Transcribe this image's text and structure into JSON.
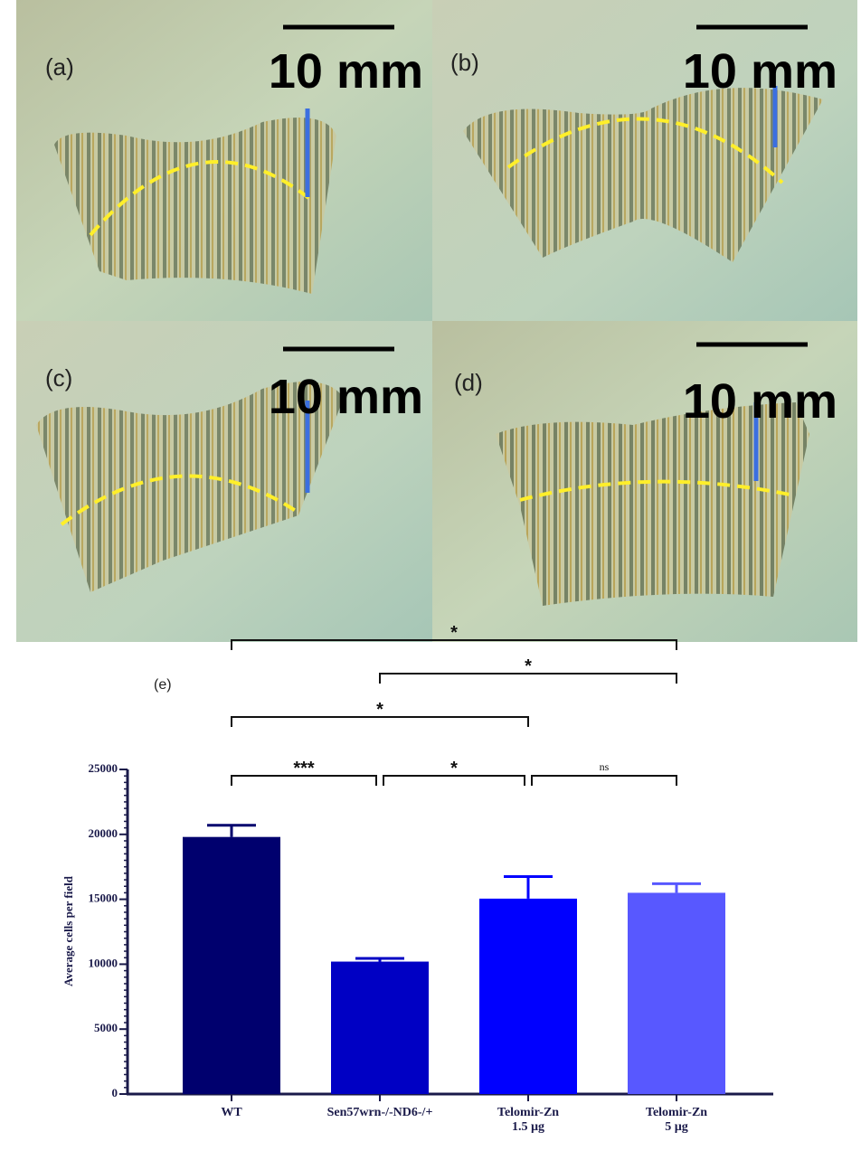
{
  "panels": [
    {
      "label": "(a)",
      "scale": "10 mm"
    },
    {
      "label": "(b)",
      "scale": "10 mm"
    },
    {
      "label": "(c)",
      "scale": "10 mm"
    },
    {
      "label": "(d)",
      "scale": "10 mm"
    }
  ],
  "chart_data": {
    "type": "bar",
    "label": "(e)",
    "y_label": "Average cells per field",
    "categories": [
      "WT",
      "Sen57wrn-/-ND6-/+",
      "Telomir-Zn\n1.5 µg",
      "Telomir-Zn\n5 µg"
    ],
    "values": [
      19800,
      10200,
      15050,
      15500
    ],
    "errors": [
      900,
      250,
      1700,
      700
    ],
    "colors": [
      "#00006e",
      "#0000c4",
      "#0000ff",
      "#5858ff"
    ],
    "ylim": [
      0,
      25000
    ],
    "yticks": [
      0,
      5000,
      10000,
      15000,
      20000,
      25000
    ],
    "comparisons": [
      {
        "from": 0,
        "to": 3,
        "label": "*"
      },
      {
        "from": 1,
        "to": 3,
        "label": "*"
      },
      {
        "from": 0,
        "to": 2,
        "label": "*"
      },
      {
        "from": 0,
        "to": 1,
        "label": "***"
      },
      {
        "from": 1,
        "to": 2,
        "label": "*"
      },
      {
        "from": 2,
        "to": 3,
        "label": "ns"
      }
    ]
  }
}
